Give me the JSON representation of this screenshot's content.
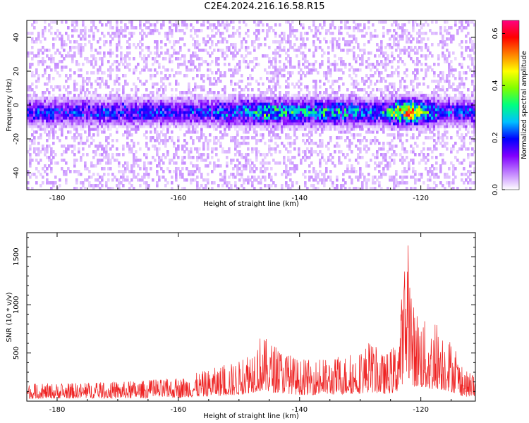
{
  "title": "C2E4.2024.216.16.58.R15",
  "chart_data": [
    {
      "type": "heatmap",
      "xlabel": "Height of straight line (km)",
      "ylabel": "Frequency (Hz)",
      "xlim": [
        -185,
        -111
      ],
      "ylim": [
        -50,
        50
      ],
      "x_ticks": [
        "-180",
        "-160",
        "-140",
        "-120"
      ],
      "y_ticks": [
        "-40",
        "-20",
        "0",
        "20",
        "40"
      ],
      "colorbar": {
        "label": "Normalized spectral amplitude",
        "range": [
          0.0,
          0.65
        ],
        "ticks": [
          "0.0",
          "0.2",
          "0.4",
          "0.6"
        ],
        "colors": [
          "#ffffff",
          "#c080ff",
          "#8000ff",
          "#0000ff",
          "#00c0ff",
          "#00ff80",
          "#80ff00",
          "#ffff00",
          "#ff8000",
          "#ff0000",
          "#ff0080"
        ]
      },
      "band": {
        "center_freq": -4,
        "halfwidth_hz": 6,
        "peak_x": -122,
        "peak_value": 0.65
      }
    },
    {
      "type": "line",
      "xlabel": "Height of straight line (km)",
      "ylabel": "SNR (10 * v/v)",
      "xlim": [
        -185,
        -111
      ],
      "ylim": [
        0,
        1750
      ],
      "x_ticks": [
        "-180",
        "-160",
        "-140",
        "-120"
      ],
      "y_ticks": [
        "500",
        "1000",
        "1500"
      ],
      "color": "#ee2222",
      "peaks": [
        {
          "x": -185,
          "y": 180
        },
        {
          "x": -170,
          "y": 200
        },
        {
          "x": -160,
          "y": 240
        },
        {
          "x": -155,
          "y": 330
        },
        {
          "x": -150,
          "y": 420
        },
        {
          "x": -146.5,
          "y": 690
        },
        {
          "x": -140,
          "y": 430
        },
        {
          "x": -135,
          "y": 440
        },
        {
          "x": -130,
          "y": 520
        },
        {
          "x": -128.5,
          "y": 630
        },
        {
          "x": -126,
          "y": 480
        },
        {
          "x": -124,
          "y": 620
        },
        {
          "x": -122.8,
          "y": 1320
        },
        {
          "x": -122.3,
          "y": 1740
        },
        {
          "x": -121.8,
          "y": 1550
        },
        {
          "x": -121.3,
          "y": 1020
        },
        {
          "x": -120,
          "y": 920
        },
        {
          "x": -118.6,
          "y": 750
        },
        {
          "x": -117.5,
          "y": 860
        },
        {
          "x": -115,
          "y": 640
        },
        {
          "x": -113,
          "y": 330
        },
        {
          "x": -111,
          "y": 260
        }
      ]
    }
  ]
}
